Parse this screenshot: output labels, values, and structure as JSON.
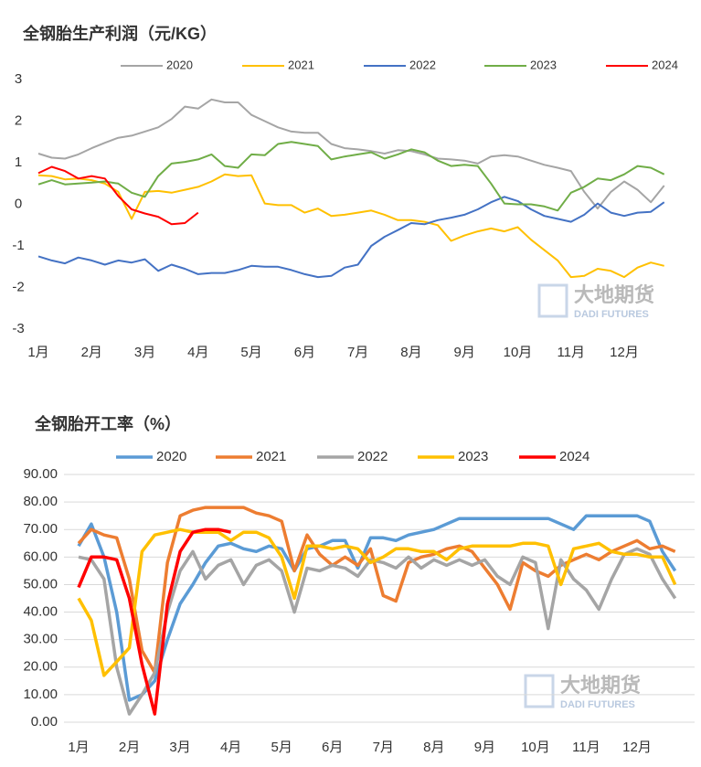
{
  "chart_data": [
    {
      "type": "line",
      "title": "全钢胎生产利润（元/KG）",
      "watermark": "大地期货",
      "watermark_en": "DADI FUTURES",
      "categories": [
        "1月",
        null,
        null,
        null,
        "2月",
        null,
        null,
        null,
        "3月",
        null,
        null,
        null,
        "4月",
        null,
        null,
        null,
        "5月",
        null,
        null,
        null,
        "6月",
        null,
        null,
        null,
        "7月",
        null,
        null,
        null,
        "8月",
        null,
        null,
        null,
        "9月",
        null,
        null,
        null,
        "10月",
        null,
        null,
        null,
        "11月",
        null,
        null,
        null,
        "12月",
        null,
        null,
        null
      ],
      "ylim": [
        -3,
        3
      ],
      "yticks": [
        -3,
        -2,
        -1,
        0,
        1,
        2,
        3
      ],
      "grid": false,
      "series": [
        {
          "name": "2020",
          "color": "#a5a5a5",
          "values": [
            1.22,
            1.12,
            1.1,
            1.2,
            1.35,
            1.48,
            1.6,
            1.65,
            1.75,
            1.85,
            2.05,
            2.35,
            2.3,
            2.52,
            2.45,
            2.45,
            2.15,
            2.0,
            1.85,
            1.75,
            1.72,
            1.72,
            1.45,
            1.35,
            1.32,
            1.28,
            1.22,
            1.3,
            1.28,
            1.2,
            1.1,
            1.08,
            1.05,
            0.98,
            1.15,
            1.18,
            1.15,
            1.05,
            0.95,
            0.88,
            0.8,
            0.3,
            -0.1,
            0.3,
            0.55,
            0.35,
            0.05,
            0.45
          ]
        },
        {
          "name": "2021",
          "color": "#ffc000",
          "values": [
            0.7,
            0.68,
            0.6,
            0.62,
            0.58,
            0.5,
            0.3,
            -0.35,
            0.3,
            0.32,
            0.28,
            0.35,
            0.42,
            0.55,
            0.72,
            0.68,
            0.7,
            0.02,
            -0.02,
            -0.02,
            -0.2,
            -0.1,
            -0.28,
            -0.25,
            -0.2,
            -0.15,
            -0.25,
            -0.38,
            -0.38,
            -0.42,
            -0.5,
            -0.88,
            -0.75,
            -0.65,
            -0.58,
            -0.65,
            -0.55,
            -0.85,
            -1.1,
            -1.35,
            -1.75,
            -1.72,
            -1.55,
            -1.6,
            -1.75,
            -1.52,
            -1.4,
            -1.48
          ]
        },
        {
          "name": "2022",
          "color": "#4472c4",
          "values": [
            -1.25,
            -1.35,
            -1.42,
            -1.28,
            -1.35,
            -1.45,
            -1.35,
            -1.4,
            -1.32,
            -1.6,
            -1.45,
            -1.55,
            -1.68,
            -1.65,
            -1.65,
            -1.58,
            -1.48,
            -1.5,
            -1.5,
            -1.58,
            -1.68,
            -1.75,
            -1.72,
            -1.52,
            -1.45,
            -1.0,
            -0.78,
            -0.62,
            -0.45,
            -0.48,
            -0.38,
            -0.32,
            -0.25,
            -0.12,
            0.05,
            0.18,
            0.08,
            -0.12,
            -0.28,
            -0.35,
            -0.42,
            -0.25,
            0.02,
            -0.2,
            -0.28,
            -0.2,
            -0.18,
            0.05
          ]
        },
        {
          "name": "2023",
          "color": "#70ad47",
          "values": [
            0.48,
            0.58,
            0.48,
            0.5,
            0.52,
            0.55,
            0.5,
            0.28,
            0.18,
            0.68,
            0.98,
            1.02,
            1.08,
            1.2,
            0.92,
            0.88,
            1.2,
            1.18,
            1.45,
            1.5,
            1.45,
            1.4,
            1.08,
            1.15,
            1.2,
            1.25,
            1.1,
            1.2,
            1.32,
            1.25,
            1.05,
            0.92,
            0.95,
            0.92,
            0.5,
            0.02,
            0.0,
            0.0,
            -0.05,
            -0.15,
            0.28,
            0.42,
            0.62,
            0.58,
            0.72,
            0.92,
            0.88,
            0.72
          ]
        },
        {
          "name": "2024",
          "color": "#ff0000",
          "values": [
            0.75,
            0.9,
            0.8,
            0.62,
            0.68,
            0.62,
            0.2,
            -0.12,
            -0.22,
            -0.3,
            -0.48,
            -0.45,
            -0.2,
            null,
            null,
            null,
            null,
            null,
            null,
            null,
            null,
            null,
            null,
            null,
            null,
            null,
            null,
            null,
            null,
            null,
            null,
            null,
            null,
            null,
            null,
            null,
            null,
            null,
            null,
            null,
            null,
            null,
            null,
            null,
            null,
            null,
            null,
            null
          ]
        }
      ]
    },
    {
      "type": "line",
      "title": "全钢胎开工率（%）",
      "watermark": "大地期货",
      "watermark_en": "DADI FUTURES",
      "categories": [
        "1月",
        null,
        null,
        null,
        "2月",
        null,
        null,
        null,
        "3月",
        null,
        null,
        null,
        "4月",
        null,
        null,
        null,
        "5月",
        null,
        null,
        null,
        "6月",
        null,
        null,
        null,
        "7月",
        null,
        null,
        null,
        "8月",
        null,
        null,
        null,
        "9月",
        null,
        null,
        null,
        "10月",
        null,
        null,
        null,
        "11月",
        null,
        null,
        null,
        "12月",
        null,
        null,
        null
      ],
      "ylim": [
        0,
        90
      ],
      "yticks": [
        {
          "value": 0,
          "label": "0.00"
        },
        {
          "value": 10,
          "label": "10.00"
        },
        {
          "value": 20,
          "label": "20.00"
        },
        {
          "value": 30,
          "label": "30.00"
        },
        {
          "value": 40,
          "label": "40.00"
        },
        {
          "value": 50,
          "label": "50.00"
        },
        {
          "value": 60,
          "label": "60.00"
        },
        {
          "value": 70,
          "label": "70.00"
        },
        {
          "value": 80,
          "label": "80.00"
        },
        {
          "value": 90,
          "label": "90.00"
        }
      ],
      "grid": true,
      "series": [
        {
          "name": "2020",
          "color": "#5b9bd5",
          "values": [
            64,
            72,
            60,
            40,
            8,
            10,
            15,
            30,
            43,
            50,
            58,
            64,
            65,
            63,
            62,
            64,
            63,
            55,
            63,
            64,
            66,
            66,
            56,
            67,
            67,
            66,
            68,
            69,
            70,
            72,
            74,
            74,
            74,
            74,
            74,
            74,
            74,
            74,
            72,
            70,
            75,
            75,
            75,
            75,
            75,
            73,
            62,
            55
          ]
        },
        {
          "name": "2021",
          "color": "#ed7d31",
          "values": [
            65,
            70,
            68,
            67,
            52,
            26,
            18,
            58,
            75,
            77,
            78,
            78,
            78,
            78,
            76,
            75,
            73,
            55,
            68,
            61,
            57,
            60,
            57,
            63,
            46,
            44,
            58,
            60,
            61,
            63,
            64,
            62,
            56,
            50,
            41,
            58,
            55,
            53,
            57,
            59,
            61,
            59,
            62,
            64,
            66,
            63,
            64,
            62
          ]
        },
        {
          "name": "2022",
          "color": "#a5a5a5",
          "values": [
            60,
            59,
            52,
            20,
            3,
            10,
            18,
            40,
            55,
            62,
            52,
            57,
            59,
            50,
            57,
            59,
            55,
            40,
            56,
            55,
            57,
            56,
            53,
            59,
            58,
            56,
            60,
            56,
            59,
            57,
            59,
            57,
            59,
            53,
            50,
            60,
            58,
            34,
            59,
            52,
            48,
            41,
            52,
            61,
            63,
            61,
            52,
            45
          ]
        },
        {
          "name": "2023",
          "color": "#ffc000",
          "values": [
            45,
            37,
            17,
            22,
            27,
            62,
            68,
            69,
            70,
            69,
            69,
            69,
            66,
            69,
            69,
            67,
            60,
            45,
            64,
            64,
            63,
            64,
            63,
            58,
            60,
            63,
            63,
            62,
            62,
            59,
            63,
            64,
            64,
            64,
            64,
            65,
            65,
            64,
            50,
            63,
            64,
            65,
            62,
            61,
            61,
            60,
            60,
            50
          ]
        },
        {
          "name": "2024",
          "color": "#ff0000",
          "values": [
            49,
            60,
            60,
            59,
            45,
            21,
            3,
            43,
            62,
            69,
            70,
            70,
            69,
            null,
            null,
            null,
            null,
            null,
            null,
            null,
            null,
            null,
            null,
            null,
            null,
            null,
            null,
            null,
            null,
            null,
            null,
            null,
            null,
            null,
            null,
            null,
            null,
            null,
            null,
            null,
            null,
            null,
            null,
            null,
            null,
            null,
            null,
            null
          ]
        }
      ]
    }
  ]
}
